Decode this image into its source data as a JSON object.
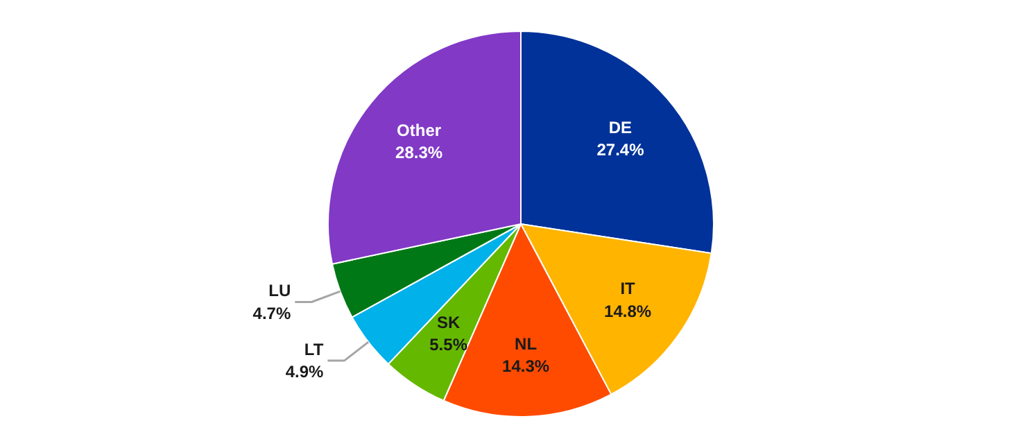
{
  "chart_data": {
    "type": "pie",
    "categories": [
      "DE",
      "IT",
      "NL",
      "SK",
      "LT",
      "LU",
      "Other"
    ],
    "values": [
      27.4,
      14.8,
      14.3,
      5.5,
      4.9,
      4.7,
      28.3
    ],
    "colors": [
      "#003299",
      "#ffb400",
      "#ff4b00",
      "#65b800",
      "#00b1ea",
      "#007816",
      "#8139c6"
    ],
    "value_labels": [
      "27.4%",
      "14.8%",
      "14.3%",
      "5.5%",
      "4.9%",
      "4.7%",
      "28.3%"
    ]
  }
}
